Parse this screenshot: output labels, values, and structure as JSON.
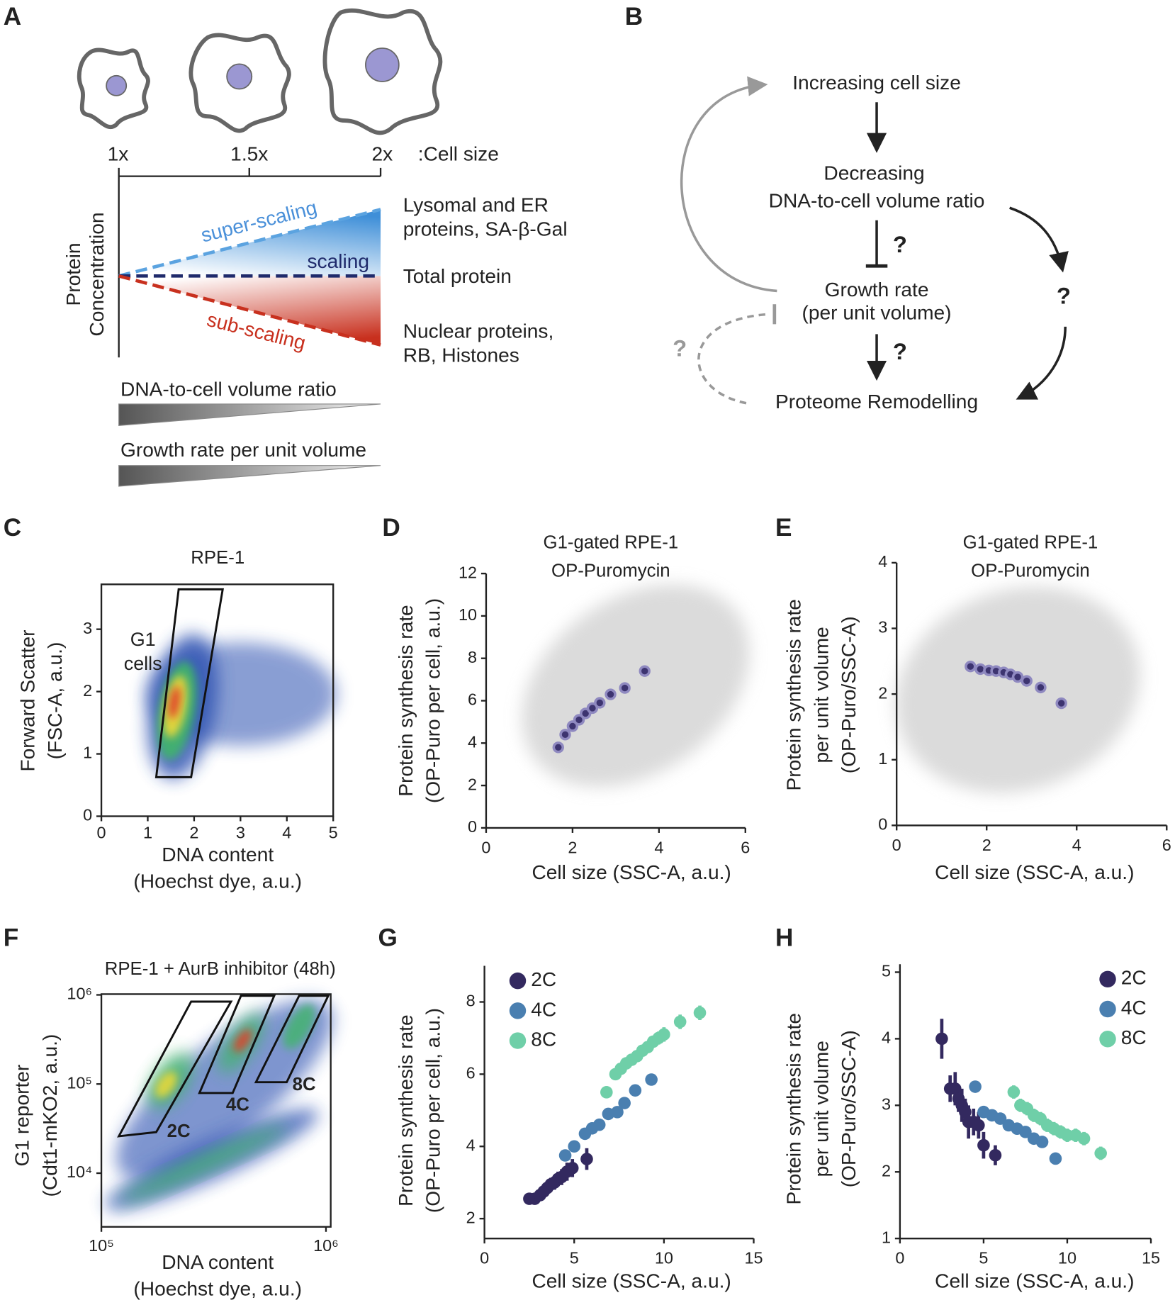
{
  "panel_labels": [
    "A",
    "B",
    "C",
    "D",
    "E",
    "F",
    "G",
    "H"
  ],
  "panel_a": {
    "sizes": [
      "1x",
      "1.5x",
      "2x"
    ],
    "size_axis_label": ":Cell size",
    "y_label": [
      "Protein",
      "Concentration"
    ],
    "trends": [
      "super-scaling",
      "scaling",
      "sub-scaling"
    ],
    "trend_examples": [
      [
        "Lysomal and ER",
        "proteins, SA-β-Gal"
      ],
      [
        "Total protein"
      ],
      [
        "Nuclear proteins,",
        "RB, Histones"
      ]
    ],
    "gradients": [
      "DNA-to-cell volume ratio",
      "Growth rate per unit volume"
    ]
  },
  "panel_b": {
    "nodes": [
      [
        "Increasing cell size"
      ],
      [
        "Decreasing",
        "DNA-to-cell volume ratio"
      ],
      [
        "Growth rate",
        "(per unit volume)"
      ],
      [
        "Proteome Remodelling"
      ]
    ],
    "question_mark": "?"
  },
  "chart_data": [
    {
      "type": "density",
      "title": "RPE-1",
      "xlabel": [
        "DNA content",
        "(Hoechst dye, a.u.)"
      ],
      "ylabel": [
        "Forward Scatter",
        "(FSC-A, a.u.)"
      ],
      "xlim": [
        0,
        5
      ],
      "ylim": [
        0,
        3.72
      ],
      "xticks": [
        0,
        1,
        2,
        3,
        4,
        5
      ],
      "yticks": [
        0,
        1,
        2,
        3
      ],
      "annotations": [
        "G1",
        "cells"
      ]
    },
    {
      "type": "scatter",
      "title": "G1-gated RPE-1",
      "subtitle": "OP-Puromycin",
      "xlabel": "Cell size (SSC-A, a.u.)",
      "ylabel": [
        "Protein synthesis rate",
        "(OP-Puro per cell, a.u.)"
      ],
      "xlim": [
        0,
        6
      ],
      "ylim": [
        0,
        12
      ],
      "xticks": [
        0,
        2,
        4,
        6
      ],
      "yticks": [
        0,
        2,
        4,
        6,
        8,
        10,
        12
      ],
      "series": [
        {
          "color": "#3d3470",
          "x": [
            1.67,
            1.83,
            2.0,
            2.15,
            2.3,
            2.46,
            2.63,
            2.88,
            3.21,
            3.67
          ],
          "values": [
            3.8,
            4.4,
            4.8,
            5.1,
            5.4,
            5.65,
            5.9,
            6.3,
            6.6,
            7.4
          ]
        }
      ]
    },
    {
      "type": "scatter",
      "title": "G1-gated RPE-1",
      "subtitle": "OP-Puromycin",
      "xlabel": "Cell size (SSC-A, a.u.)",
      "ylabel": [
        "Protein synthesis rate",
        "per unit volume",
        "(OP-Puro/SSC-A)"
      ],
      "xlim": [
        0,
        6
      ],
      "ylim": [
        0,
        4
      ],
      "xticks": [
        0,
        2,
        4,
        6
      ],
      "yticks": [
        0,
        1,
        2,
        3,
        4
      ],
      "series": [
        {
          "color": "#3d3470",
          "x": [
            1.64,
            1.86,
            2.05,
            2.21,
            2.38,
            2.53,
            2.69,
            2.89,
            3.2,
            3.66
          ],
          "values": [
            2.42,
            2.38,
            2.36,
            2.35,
            2.33,
            2.3,
            2.26,
            2.2,
            2.1,
            1.86
          ]
        }
      ]
    },
    {
      "type": "density",
      "title": "RPE-1 + AurB inhibitor (48h)",
      "xlabel": [
        "DNA content",
        "(Hoechst dye, a.u.)"
      ],
      "ylabel": [
        "G1 reporter",
        "(Cdt1-mKO2, a.u.)"
      ],
      "log_scale": true,
      "xlim": [
        100000,
        1050000
      ],
      "ylim": [
        2500,
        1020000
      ],
      "xticks": [
        {
          "value": 100000,
          "label": "10⁵"
        },
        {
          "value": 1000000,
          "label": "10⁶"
        }
      ],
      "yticks": [
        {
          "value": 10000,
          "label": "10⁴"
        },
        {
          "value": 100000,
          "label": "10⁵"
        },
        {
          "value": 1000000,
          "label": "10⁶"
        }
      ],
      "annotations": [
        "2C",
        "4C",
        "8C"
      ]
    },
    {
      "type": "scatter",
      "xlabel": "Cell size (SSC-A, a.u.)",
      "ylabel": [
        "Protein synthesis rate",
        "(OP-Puro per cell, a.u.)"
      ],
      "xlim": [
        0,
        15
      ],
      "ylim": [
        1.45,
        9
      ],
      "xticks": [
        0,
        5,
        10,
        15
      ],
      "yticks": [
        2,
        4,
        6,
        8
      ],
      "legend": "upper left",
      "series": [
        {
          "name": "2C",
          "color": "#33295f",
          "x": [
            2.5,
            2.8,
            3.1,
            3.3,
            3.5,
            3.7,
            3.9,
            4.1,
            4.3,
            4.6,
            4.9,
            5.7
          ],
          "values": [
            2.55,
            2.55,
            2.65,
            2.75,
            2.85,
            2.95,
            3.0,
            3.1,
            3.15,
            3.3,
            3.4,
            3.65
          ],
          "errors": [
            0.1,
            0.12,
            0.15,
            0.15,
            0.15,
            0.18,
            0.2,
            0.2,
            0.22,
            0.25,
            0.25,
            0.3
          ]
        },
        {
          "name": "4C",
          "color": "#4a7fb0",
          "x": [
            4.5,
            5.0,
            5.6,
            6.0,
            6.4,
            6.9,
            7.4,
            7.8,
            8.4,
            9.3
          ],
          "values": [
            3.75,
            4.0,
            4.35,
            4.5,
            4.6,
            4.9,
            4.95,
            5.2,
            5.55,
            5.85
          ],
          "errors": [
            0.08,
            0.08,
            0.08,
            0.08,
            0.08,
            0.08,
            0.08,
            0.08,
            0.08,
            0.08
          ]
        },
        {
          "name": "8C",
          "color": "#6fcfa8",
          "x": [
            6.8,
            7.3,
            7.6,
            7.9,
            8.2,
            8.5,
            8.8,
            9.1,
            9.4,
            9.7,
            10.0,
            10.9,
            12.0
          ],
          "values": [
            5.5,
            6.0,
            6.15,
            6.3,
            6.4,
            6.5,
            6.65,
            6.75,
            6.9,
            7.0,
            7.1,
            7.45,
            7.7
          ],
          "errors": [
            0.15,
            0.15,
            0.15,
            0.15,
            0.15,
            0.15,
            0.15,
            0.15,
            0.15,
            0.18,
            0.2,
            0.2,
            0.2
          ]
        }
      ]
    },
    {
      "type": "scatter",
      "xlabel": "Cell size (SSC-A, a.u.)",
      "ylabel": [
        "Protein synthesis rate",
        "per unit volume",
        "(OP-Puro/SSC-A)"
      ],
      "xlim": [
        0,
        15
      ],
      "ylim": [
        1,
        5.12
      ],
      "xticks": [
        0,
        5,
        10,
        15
      ],
      "yticks": [
        1,
        2,
        3,
        4,
        5
      ],
      "legend": "upper right",
      "series": [
        {
          "name": "2C",
          "color": "#33295f",
          "x": [
            2.5,
            3.0,
            3.3,
            3.5,
            3.7,
            3.9,
            4.1,
            4.4,
            4.7,
            5.0,
            5.7
          ],
          "values": [
            4.0,
            3.25,
            3.25,
            3.1,
            3.0,
            2.9,
            2.75,
            2.75,
            2.7,
            2.4,
            2.25
          ],
          "errors": [
            0.3,
            0.2,
            0.25,
            0.2,
            0.25,
            0.2,
            0.25,
            0.2,
            0.2,
            0.2,
            0.15
          ]
        },
        {
          "name": "4C",
          "color": "#4a7fb0",
          "x": [
            4.5,
            5.0,
            5.5,
            6.0,
            6.5,
            7.0,
            7.5,
            8.0,
            8.5,
            9.3
          ],
          "values": [
            3.28,
            2.9,
            2.85,
            2.8,
            2.7,
            2.65,
            2.6,
            2.5,
            2.45,
            2.2
          ],
          "errors": [
            0.05,
            0.05,
            0.05,
            0.05,
            0.05,
            0.05,
            0.05,
            0.05,
            0.05,
            0.05
          ]
        },
        {
          "name": "8C",
          "color": "#6fcfa8",
          "x": [
            6.8,
            7.2,
            7.6,
            8.0,
            8.4,
            8.8,
            9.2,
            9.6,
            10.0,
            10.5,
            11.0,
            12.0
          ],
          "values": [
            3.2,
            3.0,
            2.95,
            2.85,
            2.8,
            2.7,
            2.65,
            2.6,
            2.55,
            2.55,
            2.5,
            2.28
          ],
          "errors": [
            0.1,
            0.1,
            0.1,
            0.1,
            0.1,
            0.1,
            0.1,
            0.1,
            0.1,
            0.1,
            0.1,
            0.1
          ]
        }
      ]
    }
  ]
}
